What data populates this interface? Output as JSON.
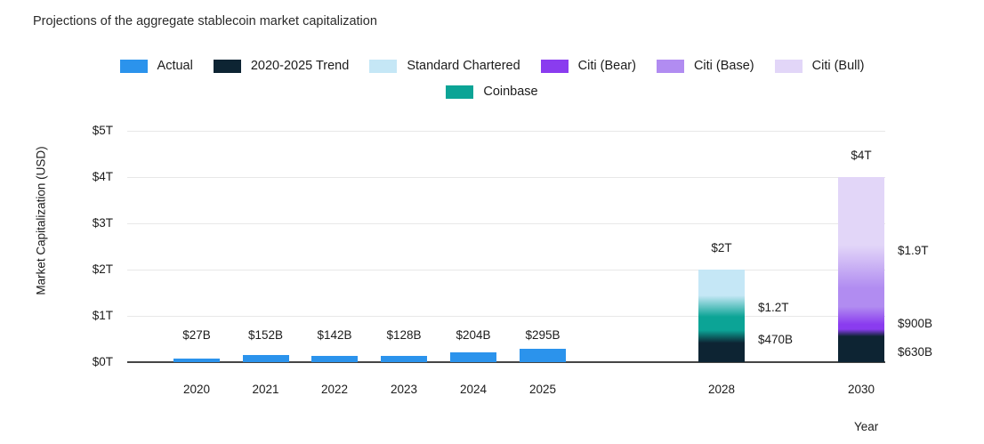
{
  "chart_data": {
    "type": "bar",
    "title": "Projections of the aggregate stablecoin market capitalization",
    "xlabel": "Year",
    "ylabel": "Market Capitalization (USD)",
    "ylim_trillions": [
      0,
      5
    ],
    "y_ticks": [
      "$0T",
      "$1T",
      "$2T",
      "$3T",
      "$4T",
      "$5T"
    ],
    "grid": "horizontal",
    "legend_position": "top",
    "categories": [
      "2020",
      "2021",
      "2022",
      "2023",
      "2024",
      "2025",
      "2028",
      "2030"
    ],
    "actual": {
      "name": "Actual",
      "years": [
        "2020",
        "2021",
        "2022",
        "2023",
        "2024",
        "2025"
      ],
      "values_billions": [
        27,
        152,
        142,
        128,
        204,
        295
      ],
      "labels": [
        "$27B",
        "$152B",
        "$142B",
        "$128B",
        "$204B",
        "$295B"
      ]
    },
    "projections": [
      {
        "year": "2028",
        "total_billions": 2000,
        "segments": [
          {
            "name": "2020-2025 Trend",
            "to_billions": 470,
            "label": "$470B"
          },
          {
            "name": "Coinbase",
            "to_billions": 1200,
            "label": "$1.2T"
          },
          {
            "name": "Standard Chartered",
            "to_billions": 2000,
            "label": "$2T"
          }
        ]
      },
      {
        "year": "2030",
        "total_billions": 4000,
        "segments": [
          {
            "name": "2020-2025 Trend",
            "to_billions": 630,
            "label": "$630B"
          },
          {
            "name": "Citi (Bear)",
            "to_billions": 900,
            "label": "$900B"
          },
          {
            "name": "Citi (Base)",
            "to_billions": 1900,
            "label": "$1.9T"
          },
          {
            "name": "Citi (Bull)",
            "to_billions": 4000,
            "label": "$4T"
          }
        ]
      }
    ],
    "legend": [
      {
        "label": "Actual",
        "color": "#2B93EC"
      },
      {
        "label": "2020-2025 Trend",
        "color": "#0D2433"
      },
      {
        "label": "Standard Chartered",
        "color": "#C5E7F6"
      },
      {
        "label": "Citi (Bear)",
        "color": "#8A3CEF"
      },
      {
        "label": "Citi (Base)",
        "color": "#B18CF1"
      },
      {
        "label": "Citi (Bull)",
        "color": "#E2D6F8"
      },
      {
        "label": "Coinbase",
        "color": "#0CA496"
      }
    ],
    "colors": {
      "grid": "#E8E8E8",
      "axis": "#454545",
      "text": "#1C1C1C"
    }
  }
}
